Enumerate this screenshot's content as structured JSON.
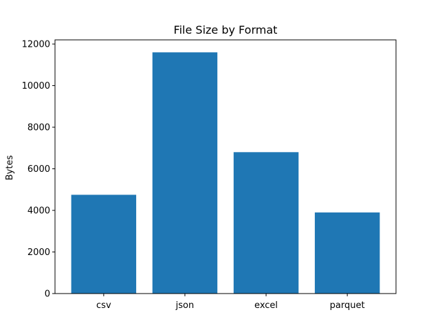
{
  "chart_data": {
    "type": "bar",
    "title": "File Size by Format",
    "xlabel": "",
    "ylabel": "Bytes",
    "categories": [
      "csv",
      "json",
      "excel",
      "parquet"
    ],
    "values": [
      4750,
      11600,
      6800,
      3900
    ],
    "ylim": [
      0,
      12200
    ],
    "yticks": [
      0,
      2000,
      4000,
      6000,
      8000,
      10000,
      12000
    ],
    "grid": false,
    "legend": "none",
    "bar_color": "#1f77b4"
  }
}
